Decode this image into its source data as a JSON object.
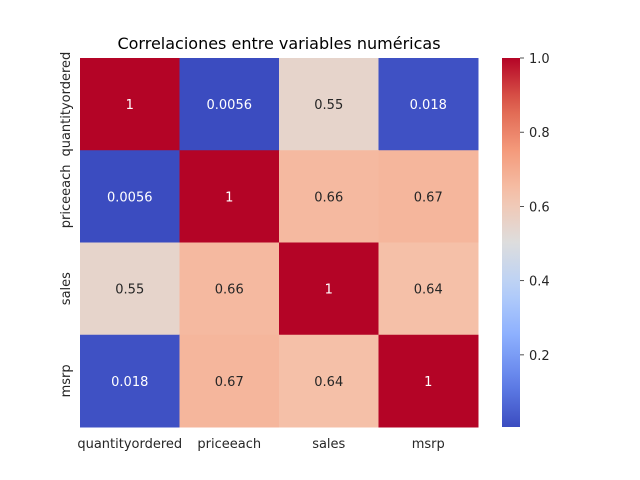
{
  "chart_data": {
    "type": "heatmap",
    "title": "Correlaciones entre variables numéricas",
    "row_labels": [
      "quantityordered",
      "priceeach",
      "sales",
      "msrp"
    ],
    "col_labels": [
      "quantityordered",
      "priceeach",
      "sales",
      "msrp"
    ],
    "values": [
      [
        1,
        0.0056,
        0.55,
        0.018
      ],
      [
        0.0056,
        1,
        0.66,
        0.67
      ],
      [
        0.55,
        0.66,
        1,
        0.64
      ],
      [
        0.018,
        0.67,
        0.64,
        1
      ]
    ],
    "annotations": [
      [
        "1",
        "0.0056",
        "0.55",
        "0.018"
      ],
      [
        "0.0056",
        "1",
        "0.66",
        "0.67"
      ],
      [
        "0.55",
        "0.66",
        "1",
        "0.64"
      ],
      [
        "0.018",
        "0.67",
        "0.64",
        "1"
      ]
    ],
    "colormap": "coolwarm",
    "colorbar": {
      "range": [
        0.0056,
        1.0
      ],
      "ticks": [
        0.2,
        0.4,
        0.6,
        0.8,
        1.0
      ],
      "tick_labels": [
        "0.2",
        "0.4",
        "0.6",
        "0.8",
        "1.0"
      ]
    }
  }
}
